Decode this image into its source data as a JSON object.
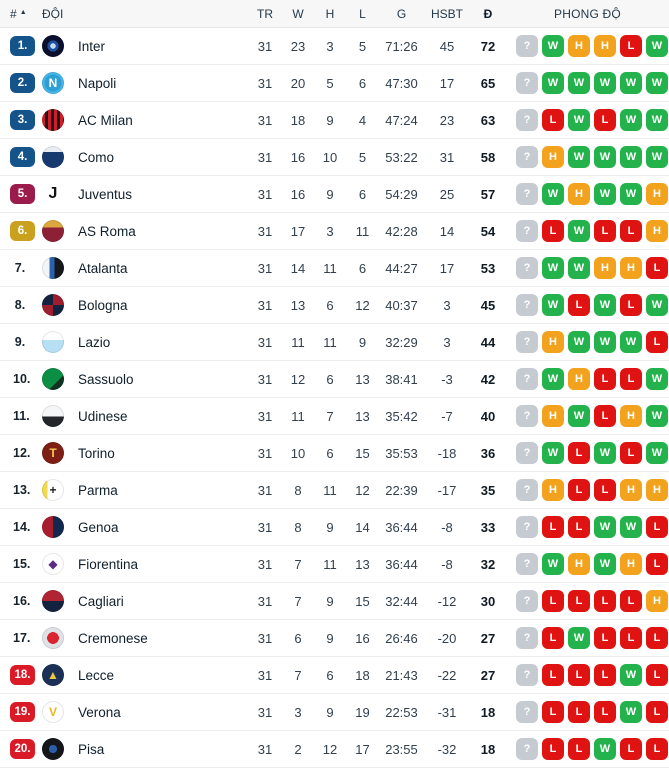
{
  "table": {
    "header": {
      "rank": "#",
      "sort_icon": "ascending",
      "team": "ĐỘI",
      "played": "TR",
      "wins": "W",
      "draws": "H",
      "losses": "L",
      "goals": "G",
      "goal_diff": "HSBT",
      "points": "Đ",
      "form": "PHONG ĐỘ"
    },
    "rows": [
      {
        "rank": "1.",
        "badge": "blue",
        "team": "Inter",
        "played": "31",
        "wins": "23",
        "draws": "3",
        "losses": "5",
        "goals": "71:26",
        "diff": "45",
        "points": "72",
        "form": [
          "?",
          "W",
          "H",
          "H",
          "L",
          "W"
        ],
        "logo_css": "background:radial-gradient(circle,#c9d6f0 0 18%,#1b4fa0 18% 36%,#0a0f2e 36% 100%)",
        "logo_glyph": "",
        "logo_glyph_color": ""
      },
      {
        "rank": "2.",
        "badge": "blue",
        "team": "Napoli",
        "played": "31",
        "wins": "20",
        "draws": "5",
        "losses": "6",
        "goals": "47:30",
        "diff": "17",
        "points": "65",
        "form": [
          "?",
          "W",
          "W",
          "W",
          "W",
          "W"
        ],
        "logo_css": "background:radial-gradient(circle,#2e9fd4 0 55%,#49b7ea 55% 100%)",
        "logo_glyph": "N",
        "logo_glyph_color": "#ffffff"
      },
      {
        "rank": "3.",
        "badge": "blue",
        "team": "AC Milan",
        "played": "31",
        "wins": "18",
        "draws": "9",
        "losses": "4",
        "goals": "47:24",
        "diff": "23",
        "points": "63",
        "form": [
          "?",
          "L",
          "W",
          "L",
          "W",
          "W"
        ],
        "logo_css": "background:repeating-linear-gradient(90deg,#d21d2b 0 3px,#1b1b1b 3px 6px)",
        "logo_glyph": "",
        "logo_glyph_color": ""
      },
      {
        "rank": "4.",
        "badge": "blue",
        "team": "Como",
        "played": "31",
        "wins": "16",
        "draws": "10",
        "losses": "5",
        "goals": "53:22",
        "diff": "31",
        "points": "58",
        "form": [
          "?",
          "H",
          "W",
          "W",
          "W",
          "W"
        ],
        "logo_css": "background:linear-gradient(180deg,#e8edf4 0 28%,#16396f 28% 100%)",
        "logo_glyph": "",
        "logo_glyph_color": ""
      },
      {
        "rank": "5.",
        "badge": "maroon",
        "team": "Juventus",
        "played": "31",
        "wins": "16",
        "draws": "9",
        "losses": "6",
        "goals": "54:29",
        "diff": "25",
        "points": "57",
        "form": [
          "?",
          "W",
          "H",
          "W",
          "W",
          "H"
        ],
        "logo_css": "background:transparent",
        "logo_glyph": "J",
        "logo_glyph_color": "#121212",
        "logo_flat": true
      },
      {
        "rank": "6.",
        "badge": "gold",
        "team": "AS Roma",
        "played": "31",
        "wins": "17",
        "draws": "3",
        "losses": "11",
        "goals": "42:28",
        "diff": "14",
        "points": "54",
        "form": [
          "?",
          "L",
          "W",
          "L",
          "L",
          "H"
        ],
        "logo_css": "background:linear-gradient(180deg,#dca73f 0 34%,#8e2035 34% 100%)",
        "logo_glyph": "",
        "logo_glyph_color": ""
      },
      {
        "rank": "7.",
        "badge": "none",
        "team": "Atalanta",
        "played": "31",
        "wins": "14",
        "draws": "11",
        "losses": "6",
        "goals": "44:27",
        "diff": "17",
        "points": "53",
        "form": [
          "?",
          "W",
          "W",
          "H",
          "H",
          "L"
        ],
        "logo_css": "background:linear-gradient(90deg,#f2f5f8 0 34%,#2a62b0 34% 56%,#15171b 56% 100%)",
        "logo_glyph": "",
        "logo_glyph_color": ""
      },
      {
        "rank": "8.",
        "badge": "none",
        "team": "Bologna",
        "played": "31",
        "wins": "13",
        "draws": "6",
        "losses": "12",
        "goals": "40:37",
        "diff": "3",
        "points": "45",
        "form": [
          "?",
          "W",
          "L",
          "W",
          "L",
          "W"
        ],
        "logo_css": "background:conic-gradient(#9f1d2d 0 25%,#13233f 25% 50%,#9f1d2d 50% 75%,#13233f 75% 100%)",
        "logo_glyph": "",
        "logo_glyph_color": ""
      },
      {
        "rank": "9.",
        "badge": "none",
        "team": "Lazio",
        "played": "31",
        "wins": "11",
        "draws": "11",
        "losses": "9",
        "goals": "32:29",
        "diff": "3",
        "points": "44",
        "form": [
          "?",
          "H",
          "W",
          "W",
          "W",
          "L"
        ],
        "logo_css": "background:linear-gradient(180deg,#ffffff 0 42%,#b8e0f5 42% 100%)",
        "logo_glyph": "",
        "logo_glyph_color": ""
      },
      {
        "rank": "10.",
        "badge": "none",
        "team": "Sassuolo",
        "played": "31",
        "wins": "12",
        "draws": "6",
        "losses": "13",
        "goals": "38:41",
        "diff": "-3",
        "points": "42",
        "form": [
          "?",
          "W",
          "H",
          "L",
          "L",
          "W"
        ],
        "logo_css": "background:linear-gradient(135deg,#0c8f45 0 65%,#103322 65% 100%)",
        "logo_glyph": "",
        "logo_glyph_color": ""
      },
      {
        "rank": "11.",
        "badge": "none",
        "team": "Udinese",
        "played": "31",
        "wins": "11",
        "draws": "7",
        "losses": "13",
        "goals": "35:42",
        "diff": "-7",
        "points": "40",
        "form": [
          "?",
          "H",
          "W",
          "L",
          "H",
          "W"
        ],
        "logo_css": "background:linear-gradient(180deg,#f5f6f8 0 52%,#23262b 52% 100%)",
        "logo_glyph": "",
        "logo_glyph_color": ""
      },
      {
        "rank": "12.",
        "badge": "none",
        "team": "Torino",
        "played": "31",
        "wins": "10",
        "draws": "6",
        "losses": "15",
        "goals": "35:53",
        "diff": "-18",
        "points": "36",
        "form": [
          "?",
          "W",
          "L",
          "W",
          "L",
          "W"
        ],
        "logo_css": "background:#7e1f15",
        "logo_glyph": "T",
        "logo_glyph_color": "#f3c84f"
      },
      {
        "rank": "13.",
        "badge": "none",
        "team": "Parma",
        "played": "31",
        "wins": "8",
        "draws": "11",
        "losses": "12",
        "goals": "22:39",
        "diff": "-17",
        "points": "35",
        "form": [
          "?",
          "H",
          "L",
          "L",
          "H",
          "H"
        ],
        "logo_css": "background:linear-gradient(90deg,#f3d94d 0 26%,#ffffff 26% 100%)",
        "logo_glyph": "+",
        "logo_glyph_color": "#1b1b1b"
      },
      {
        "rank": "14.",
        "badge": "none",
        "team": "Genoa",
        "played": "31",
        "wins": "8",
        "draws": "9",
        "losses": "14",
        "goals": "36:44",
        "diff": "-8",
        "points": "33",
        "form": [
          "?",
          "L",
          "L",
          "W",
          "W",
          "L"
        ],
        "logo_css": "background:linear-gradient(90deg,#a81e2d 0 50%,#12294d 50% 100%)",
        "logo_glyph": "",
        "logo_glyph_color": ""
      },
      {
        "rank": "15.",
        "badge": "none",
        "team": "Fiorentina",
        "played": "31",
        "wins": "7",
        "draws": "11",
        "losses": "13",
        "goals": "36:44",
        "diff": "-8",
        "points": "32",
        "form": [
          "?",
          "W",
          "H",
          "W",
          "H",
          "L"
        ],
        "logo_css": "background:#ffffff",
        "logo_glyph": "◆",
        "logo_glyph_color": "#5a2d82"
      },
      {
        "rank": "16.",
        "badge": "none",
        "team": "Cagliari",
        "played": "31",
        "wins": "7",
        "draws": "9",
        "losses": "15",
        "goals": "32:44",
        "diff": "-12",
        "points": "30",
        "form": [
          "?",
          "L",
          "L",
          "L",
          "L",
          "H"
        ],
        "logo_css": "background:linear-gradient(180deg,#b02433 0 50%,#13233f 50% 100%)",
        "logo_glyph": "",
        "logo_glyph_color": ""
      },
      {
        "rank": "17.",
        "badge": "none",
        "team": "Cremonese",
        "played": "31",
        "wins": "6",
        "draws": "9",
        "losses": "16",
        "goals": "26:46",
        "diff": "-20",
        "points": "27",
        "form": [
          "?",
          "L",
          "W",
          "L",
          "L",
          "L"
        ],
        "logo_css": "background:radial-gradient(circle,#d8252f 0 38%,#dfe3e7 38% 100%)",
        "logo_glyph": "",
        "logo_glyph_color": ""
      },
      {
        "rank": "18.",
        "badge": "red",
        "team": "Lecce",
        "played": "31",
        "wins": "7",
        "draws": "6",
        "losses": "18",
        "goals": "21:43",
        "diff": "-22",
        "points": "27",
        "form": [
          "?",
          "L",
          "L",
          "L",
          "W",
          "L"
        ],
        "logo_css": "background:#1c3057",
        "logo_glyph": "▲",
        "logo_glyph_color": "#e8c83c"
      },
      {
        "rank": "19.",
        "badge": "red",
        "team": "Verona",
        "played": "31",
        "wins": "3",
        "draws": "9",
        "losses": "19",
        "goals": "22:53",
        "diff": "-31",
        "points": "18",
        "form": [
          "?",
          "L",
          "L",
          "L",
          "W",
          "L"
        ],
        "logo_css": "background:#ffffff",
        "logo_glyph": "V",
        "logo_glyph_color": "#e3b81f"
      },
      {
        "rank": "20.",
        "badge": "red",
        "team": "Pisa",
        "played": "31",
        "wins": "2",
        "draws": "12",
        "losses": "17",
        "goals": "23:55",
        "diff": "-32",
        "points": "18",
        "form": [
          "?",
          "L",
          "L",
          "W",
          "L",
          "L"
        ],
        "logo_css": "background:radial-gradient(circle,#2a5ca8 0 26%,#15161a 26% 100%)",
        "logo_glyph": "",
        "logo_glyph_color": ""
      }
    ]
  },
  "colors": {
    "rank_badges": {
      "blue": "#15548a",
      "maroon": "#9b1c4c",
      "gold": "#c9a11f",
      "red": "#da1a27"
    },
    "form": {
      "W": "#23b24b",
      "H": "#f2a21c",
      "L": "#e01313",
      "?": "#c6cbd1"
    },
    "header_bg": "#f7f7f8",
    "row_divider": "#ededef"
  }
}
